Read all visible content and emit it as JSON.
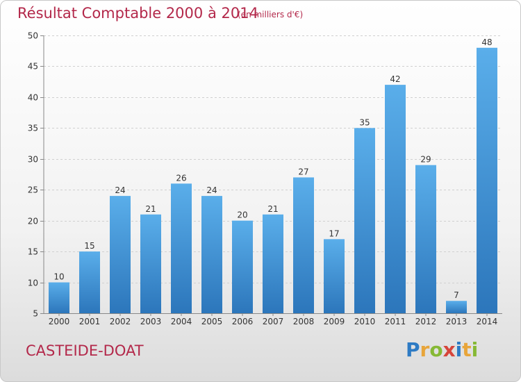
{
  "title": "Résultat Comptable 2000 à 2014",
  "unit": "(en milliers d'€)",
  "commune": "CASTEIDE-DOAT",
  "logo": {
    "letters": [
      "P",
      "r",
      "o",
      "x",
      "i",
      "t",
      "i"
    ],
    "colors": [
      "#2e7bc4",
      "#e8a53a",
      "#86b935",
      "#d6453a",
      "#2e7bc4",
      "#e8a53a",
      "#86b935"
    ]
  },
  "colors": {
    "bar": "#4a9ee0",
    "bar_dark": "#2f79be",
    "title": "#b3284a"
  },
  "chart_data": {
    "type": "bar",
    "categories": [
      "2000",
      "2001",
      "2002",
      "2003",
      "2004",
      "2005",
      "2006",
      "2007",
      "2008",
      "2009",
      "2010",
      "2011",
      "2012",
      "2013",
      "2014"
    ],
    "values": [
      10,
      15,
      24,
      21,
      26,
      24,
      20,
      21,
      27,
      17,
      35,
      42,
      29,
      7,
      48
    ],
    "ylim": [
      5,
      50
    ],
    "yticks": [
      5,
      10,
      15,
      20,
      25,
      30,
      35,
      40,
      45,
      50
    ],
    "grid": true,
    "data_labels": true
  }
}
